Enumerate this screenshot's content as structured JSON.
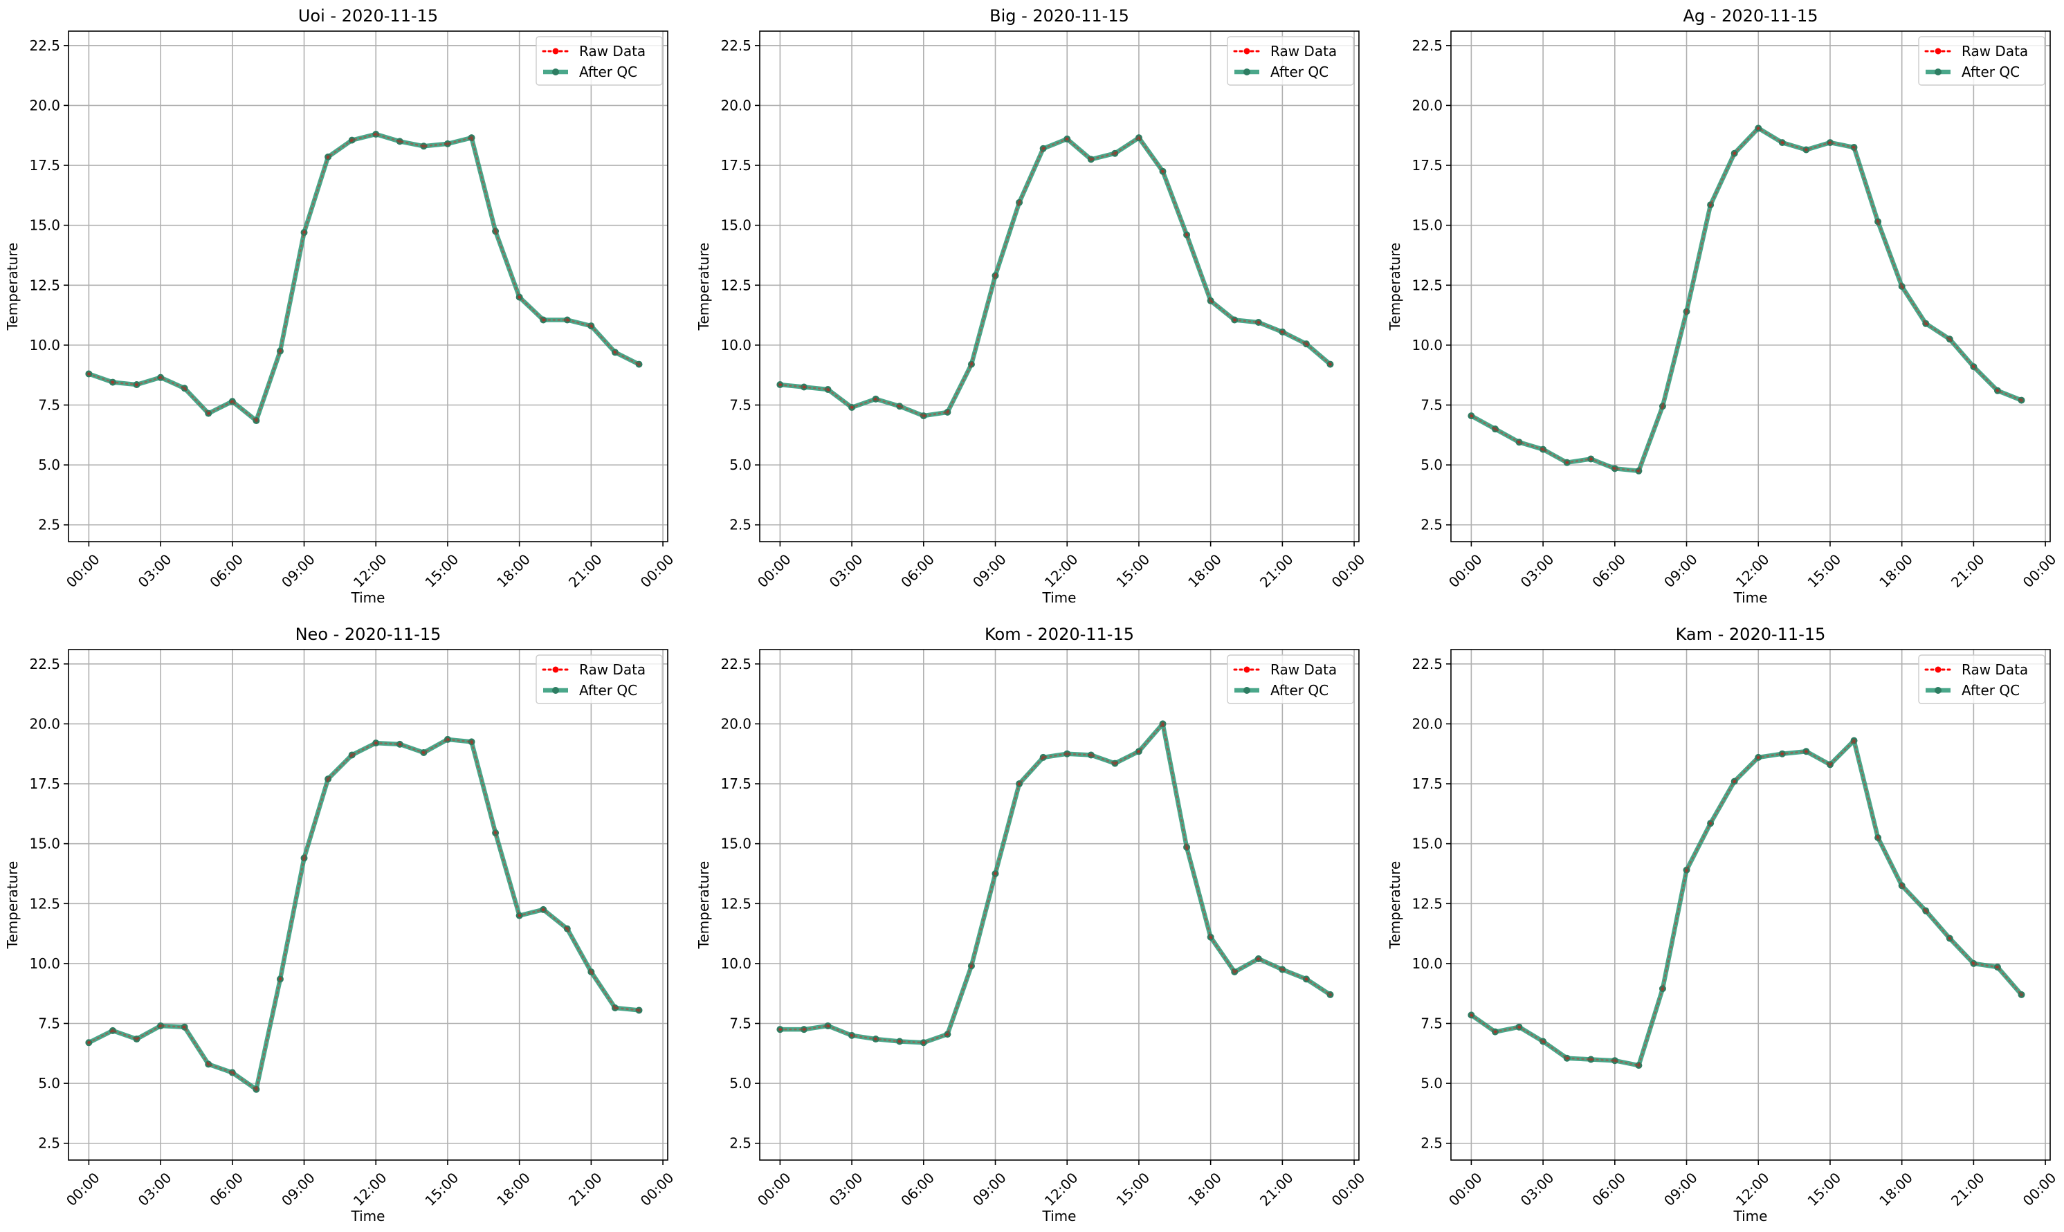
{
  "colors": {
    "raw": "#ff0000",
    "after_qc": "#2a9876",
    "after_qc_marker": "#2e7d62",
    "grid": "#b0b0b0",
    "axis": "#000000"
  },
  "chart_data": [
    {
      "type": "line",
      "title": "Uoi - 2020-11-15",
      "xlabel": "Time",
      "ylabel": "Temperature",
      "xlim": [
        -0.85,
        24.2
      ],
      "ylim": [
        1.8,
        23.1
      ],
      "x_ticks": [
        0,
        3,
        6,
        9,
        12,
        15,
        18,
        21,
        24
      ],
      "x_tick_labels": [
        "00:00",
        "03:00",
        "06:00",
        "09:00",
        "12:00",
        "15:00",
        "18:00",
        "21:00",
        "00:00"
      ],
      "y_ticks": [
        2.5,
        5.0,
        7.5,
        10.0,
        12.5,
        15.0,
        17.5,
        20.0,
        22.5
      ],
      "y_tick_labels": [
        "2.5",
        "5.0",
        "7.5",
        "10.0",
        "12.5",
        "15.0",
        "17.5",
        "20.0",
        "22.5"
      ],
      "grid": true,
      "legend_position": "top-right",
      "x": [
        0,
        1,
        2,
        3,
        4,
        5,
        6,
        7,
        8,
        9,
        10,
        11,
        12,
        13,
        14,
        15,
        16,
        17,
        18,
        19,
        20,
        21,
        22,
        23
      ],
      "series": [
        {
          "name": "Raw Data",
          "values": [
            8.8,
            8.45,
            8.35,
            8.65,
            8.2,
            7.15,
            7.65,
            6.85,
            9.75,
            14.7,
            17.85,
            18.55,
            18.8,
            18.5,
            18.3,
            18.4,
            18.65,
            14.75,
            12.0,
            11.05,
            11.05,
            10.8,
            9.7,
            9.2
          ]
        },
        {
          "name": "After QC",
          "values": [
            8.8,
            8.45,
            8.35,
            8.65,
            8.2,
            7.15,
            7.65,
            6.85,
            9.75,
            14.7,
            17.85,
            18.55,
            18.8,
            18.5,
            18.3,
            18.4,
            18.65,
            14.75,
            12.0,
            11.05,
            11.05,
            10.8,
            9.7,
            9.2
          ]
        }
      ]
    },
    {
      "type": "line",
      "title": "Big - 2020-11-15",
      "xlabel": "Time",
      "ylabel": "Temperature",
      "xlim": [
        -0.85,
        24.2
      ],
      "ylim": [
        1.8,
        23.1
      ],
      "x_ticks": [
        0,
        3,
        6,
        9,
        12,
        15,
        18,
        21,
        24
      ],
      "x_tick_labels": [
        "00:00",
        "03:00",
        "06:00",
        "09:00",
        "12:00",
        "15:00",
        "18:00",
        "21:00",
        "00:00"
      ],
      "y_ticks": [
        2.5,
        5.0,
        7.5,
        10.0,
        12.5,
        15.0,
        17.5,
        20.0,
        22.5
      ],
      "y_tick_labels": [
        "2.5",
        "5.0",
        "7.5",
        "10.0",
        "12.5",
        "15.0",
        "17.5",
        "20.0",
        "22.5"
      ],
      "grid": true,
      "legend_position": "top-right",
      "x": [
        0,
        1,
        2,
        3,
        4,
        5,
        6,
        7,
        8,
        9,
        10,
        11,
        12,
        13,
        14,
        15,
        16,
        17,
        18,
        19,
        20,
        21,
        22,
        23
      ],
      "series": [
        {
          "name": "Raw Data",
          "values": [
            8.35,
            8.25,
            8.15,
            7.4,
            7.75,
            7.45,
            7.05,
            7.2,
            9.2,
            12.9,
            15.95,
            18.2,
            18.6,
            17.75,
            18.0,
            18.65,
            17.25,
            14.6,
            11.85,
            11.05,
            10.95,
            10.55,
            10.05,
            9.2
          ]
        },
        {
          "name": "After QC",
          "values": [
            8.35,
            8.25,
            8.15,
            7.4,
            7.75,
            7.45,
            7.05,
            7.2,
            9.2,
            12.9,
            15.95,
            18.2,
            18.6,
            17.75,
            18.0,
            18.65,
            17.25,
            14.6,
            11.85,
            11.05,
            10.95,
            10.55,
            10.05,
            9.2
          ]
        }
      ]
    },
    {
      "type": "line",
      "title": "Ag - 2020-11-15",
      "xlabel": "Time",
      "ylabel": "Temperature",
      "xlim": [
        -0.85,
        24.2
      ],
      "ylim": [
        1.8,
        23.1
      ],
      "x_ticks": [
        0,
        3,
        6,
        9,
        12,
        15,
        18,
        21,
        24
      ],
      "x_tick_labels": [
        "00:00",
        "03:00",
        "06:00",
        "09:00",
        "12:00",
        "15:00",
        "18:00",
        "21:00",
        "00:00"
      ],
      "y_ticks": [
        2.5,
        5.0,
        7.5,
        10.0,
        12.5,
        15.0,
        17.5,
        20.0,
        22.5
      ],
      "y_tick_labels": [
        "2.5",
        "5.0",
        "7.5",
        "10.0",
        "12.5",
        "15.0",
        "17.5",
        "20.0",
        "22.5"
      ],
      "grid": true,
      "legend_position": "top-right",
      "x": [
        0,
        1,
        2,
        3,
        4,
        5,
        6,
        7,
        8,
        9,
        10,
        11,
        12,
        13,
        14,
        15,
        16,
        17,
        18,
        19,
        20,
        21,
        22,
        23
      ],
      "series": [
        {
          "name": "Raw Data",
          "values": [
            7.05,
            6.5,
            5.95,
            5.65,
            5.1,
            5.25,
            4.85,
            4.75,
            7.45,
            11.4,
            15.85,
            18.0,
            19.05,
            18.45,
            18.15,
            18.45,
            18.25,
            15.15,
            12.45,
            10.9,
            10.25,
            9.1,
            8.1,
            7.7
          ]
        },
        {
          "name": "After QC",
          "values": [
            7.05,
            6.5,
            5.95,
            5.65,
            5.1,
            5.25,
            4.85,
            4.75,
            7.45,
            11.4,
            15.85,
            18.0,
            19.05,
            18.45,
            18.15,
            18.45,
            18.25,
            15.15,
            12.45,
            10.9,
            10.25,
            9.1,
            8.1,
            7.7
          ]
        }
      ]
    },
    {
      "type": "line",
      "title": "Neo - 2020-11-15",
      "xlabel": "Time",
      "ylabel": "Temperature",
      "xlim": [
        -0.85,
        24.2
      ],
      "ylim": [
        1.8,
        23.1
      ],
      "x_ticks": [
        0,
        3,
        6,
        9,
        12,
        15,
        18,
        21,
        24
      ],
      "x_tick_labels": [
        "00:00",
        "03:00",
        "06:00",
        "09:00",
        "12:00",
        "15:00",
        "18:00",
        "21:00",
        "00:00"
      ],
      "y_ticks": [
        2.5,
        5.0,
        7.5,
        10.0,
        12.5,
        15.0,
        17.5,
        20.0,
        22.5
      ],
      "y_tick_labels": [
        "2.5",
        "5.0",
        "7.5",
        "10.0",
        "12.5",
        "15.0",
        "17.5",
        "20.0",
        "22.5"
      ],
      "grid": true,
      "legend_position": "top-right",
      "x": [
        0,
        1,
        2,
        3,
        4,
        5,
        6,
        7,
        8,
        9,
        10,
        11,
        12,
        13,
        14,
        15,
        16,
        17,
        18,
        19,
        20,
        21,
        22,
        23
      ],
      "series": [
        {
          "name": "Raw Data",
          "values": [
            6.7,
            7.2,
            6.85,
            7.4,
            7.35,
            5.8,
            5.45,
            4.75,
            9.35,
            14.4,
            17.7,
            18.7,
            19.2,
            19.15,
            18.8,
            19.35,
            19.25,
            15.45,
            12.0,
            12.25,
            11.45,
            9.65,
            8.15,
            8.05
          ]
        },
        {
          "name": "After QC",
          "values": [
            6.7,
            7.2,
            6.85,
            7.4,
            7.35,
            5.8,
            5.45,
            4.75,
            9.35,
            14.4,
            17.7,
            18.7,
            19.2,
            19.15,
            18.8,
            19.35,
            19.25,
            15.45,
            12.0,
            12.25,
            11.45,
            9.65,
            8.15,
            8.05
          ]
        }
      ]
    },
    {
      "type": "line",
      "title": "Kom - 2020-11-15",
      "xlabel": "Time",
      "ylabel": "Temperature",
      "xlim": [
        -0.85,
        24.2
      ],
      "ylim": [
        1.8,
        23.1
      ],
      "x_ticks": [
        0,
        3,
        6,
        9,
        12,
        15,
        18,
        21,
        24
      ],
      "x_tick_labels": [
        "00:00",
        "03:00",
        "06:00",
        "09:00",
        "12:00",
        "15:00",
        "18:00",
        "21:00",
        "00:00"
      ],
      "y_ticks": [
        2.5,
        5.0,
        7.5,
        10.0,
        12.5,
        15.0,
        17.5,
        20.0,
        22.5
      ],
      "y_tick_labels": [
        "2.5",
        "5.0",
        "7.5",
        "10.0",
        "12.5",
        "15.0",
        "17.5",
        "20.0",
        "22.5"
      ],
      "grid": true,
      "legend_position": "top-right",
      "x": [
        0,
        1,
        2,
        3,
        4,
        5,
        6,
        7,
        8,
        9,
        10,
        11,
        12,
        13,
        14,
        15,
        16,
        17,
        18,
        19,
        20,
        21,
        22,
        23
      ],
      "series": [
        {
          "name": "Raw Data",
          "values": [
            7.25,
            7.25,
            7.4,
            7.0,
            6.85,
            6.75,
            6.7,
            7.05,
            9.9,
            13.75,
            17.5,
            18.6,
            18.75,
            18.7,
            18.35,
            18.85,
            20.0,
            14.85,
            11.1,
            9.65,
            10.2,
            9.75,
            9.35,
            8.7
          ]
        },
        {
          "name": "After QC",
          "values": [
            7.25,
            7.25,
            7.4,
            7.0,
            6.85,
            6.75,
            6.7,
            7.05,
            9.9,
            13.75,
            17.5,
            18.6,
            18.75,
            18.7,
            18.35,
            18.85,
            20.0,
            14.85,
            11.1,
            9.65,
            10.2,
            9.75,
            9.35,
            8.7
          ]
        }
      ]
    },
    {
      "type": "line",
      "title": "Kam - 2020-11-15",
      "xlabel": "Time",
      "ylabel": "Temperature",
      "xlim": [
        -0.85,
        24.2
      ],
      "ylim": [
        1.8,
        23.1
      ],
      "x_ticks": [
        0,
        3,
        6,
        9,
        12,
        15,
        18,
        21,
        24
      ],
      "x_tick_labels": [
        "00:00",
        "03:00",
        "06:00",
        "09:00",
        "12:00",
        "15:00",
        "18:00",
        "21:00",
        "00:00"
      ],
      "y_ticks": [
        2.5,
        5.0,
        7.5,
        10.0,
        12.5,
        15.0,
        17.5,
        20.0,
        22.5
      ],
      "y_tick_labels": [
        "2.5",
        "5.0",
        "7.5",
        "10.0",
        "12.5",
        "15.0",
        "17.5",
        "20.0",
        "22.5"
      ],
      "grid": true,
      "legend_position": "top-right",
      "x": [
        0,
        1,
        2,
        3,
        4,
        5,
        6,
        7,
        8,
        9,
        10,
        11,
        12,
        13,
        14,
        15,
        16,
        17,
        18,
        19,
        20,
        21,
        22,
        23
      ],
      "series": [
        {
          "name": "Raw Data",
          "values": [
            7.85,
            7.15,
            7.35,
            6.75,
            6.05,
            6.0,
            5.95,
            5.75,
            8.95,
            13.9,
            15.85,
            17.6,
            18.6,
            18.75,
            18.85,
            18.3,
            19.3,
            15.25,
            13.25,
            12.2,
            11.05,
            10.0,
            9.85,
            8.7
          ]
        },
        {
          "name": "After QC",
          "values": [
            7.85,
            7.15,
            7.35,
            6.75,
            6.05,
            6.0,
            5.95,
            5.75,
            8.95,
            13.9,
            15.85,
            17.6,
            18.6,
            18.75,
            18.85,
            18.3,
            19.3,
            15.25,
            13.25,
            12.2,
            11.05,
            10.0,
            9.85,
            8.7
          ]
        }
      ]
    }
  ]
}
